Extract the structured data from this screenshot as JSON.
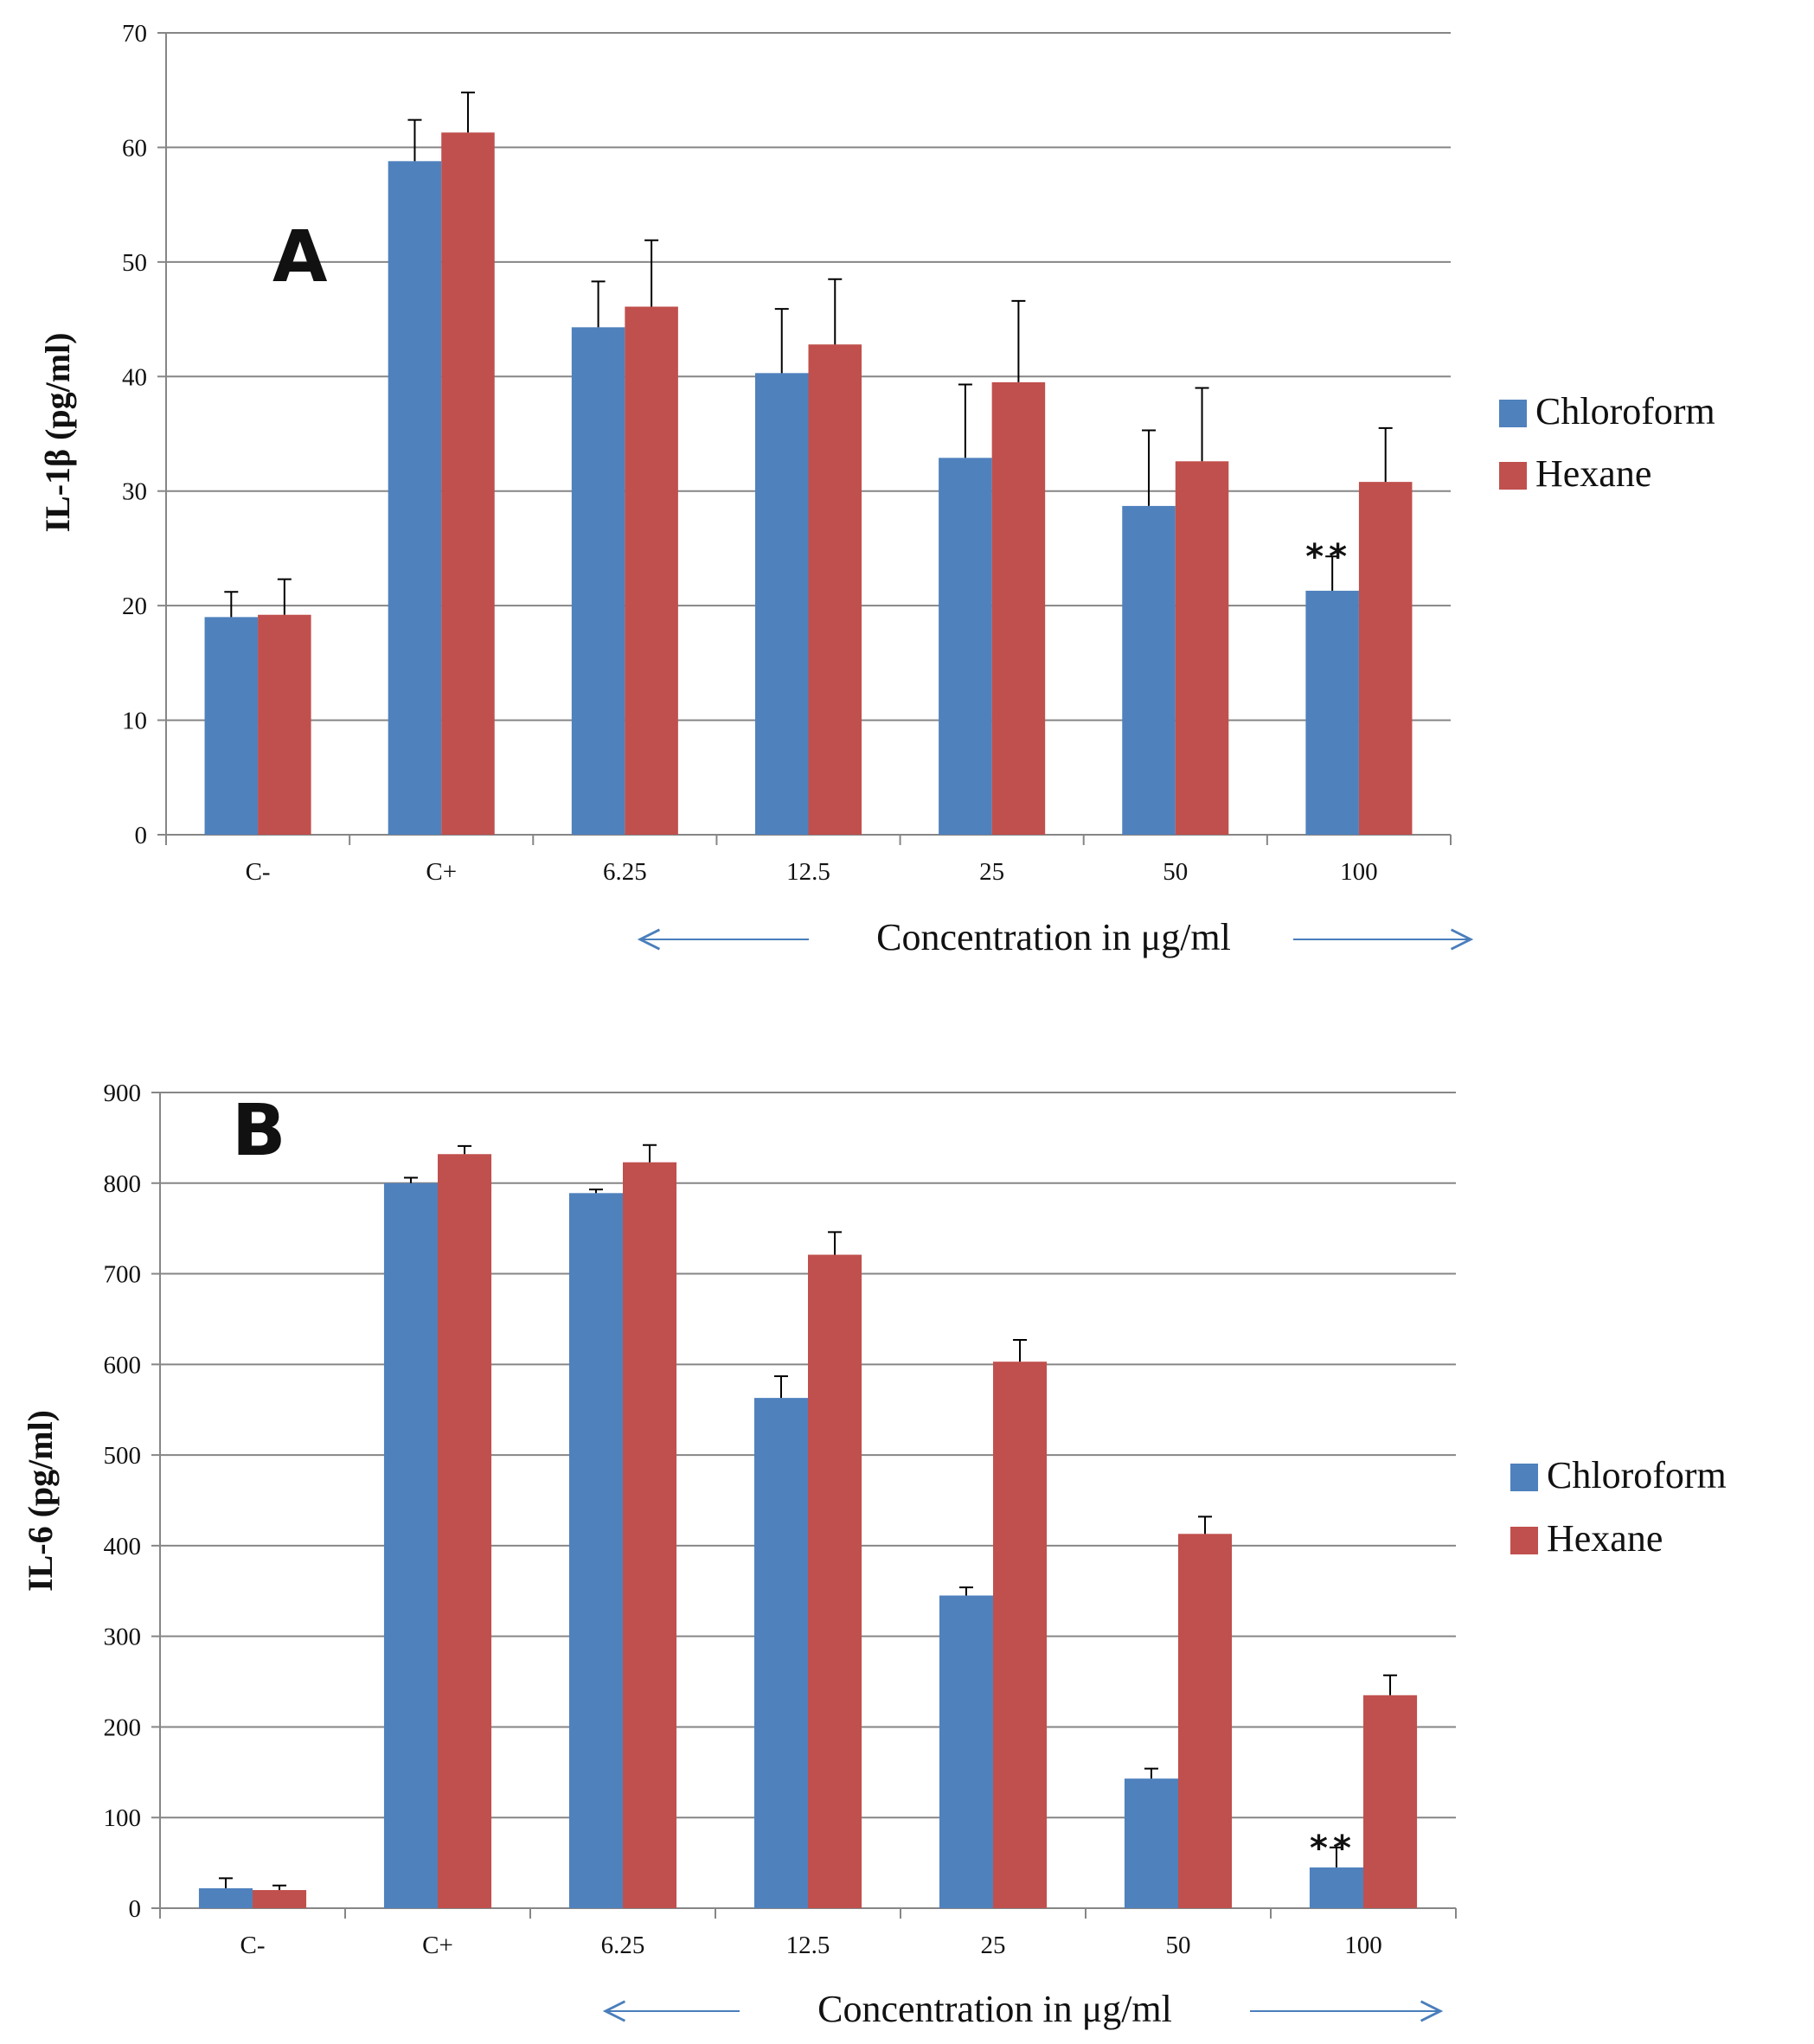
{
  "colors": {
    "chloroform": "#4F81BD",
    "hexane": "#C0504D",
    "grid": "#868686",
    "axis": "#868686",
    "arrow": "#4A7EBB"
  },
  "chart_data": [
    {
      "type": "bar",
      "panel_label": "A",
      "ylabel": "IL-1β (pg/ml)",
      "xlabel": "Concentration in μg/ml",
      "categories": [
        "C-",
        "C+",
        "6.25",
        "12.5",
        "25",
        "50",
        "100"
      ],
      "ylim": [
        0,
        70
      ],
      "yticks": [
        "0",
        "10",
        "20",
        "30",
        "40",
        "50",
        "60",
        "70"
      ],
      "grid": true,
      "legend_position": "right",
      "series": [
        {
          "name": "Chloroform",
          "values": [
            19,
            58.8,
            44.3,
            40.3,
            32.9,
            28.7,
            21.3
          ],
          "errors": [
            2.2,
            3.6,
            4,
            5.6,
            6.4,
            6.6,
            3
          ]
        },
        {
          "name": "Hexane",
          "values": [
            19.2,
            61.3,
            46.1,
            42.8,
            39.5,
            32.6,
            30.8
          ],
          "errors": [
            3.1,
            3.5,
            5.8,
            5.7,
            7.1,
            6.4,
            4.7
          ]
        }
      ],
      "annotations": [
        {
          "text": "**",
          "category": "100",
          "series": "Chloroform"
        }
      ]
    },
    {
      "type": "bar",
      "panel_label": "B",
      "ylabel": "IL-6 (pg/ml)",
      "xlabel": "Concentration in μg/ml",
      "categories": [
        "C-",
        "C+",
        "6.25",
        "12.5",
        "25",
        "50",
        "100"
      ],
      "ylim": [
        0,
        900
      ],
      "yticks": [
        "0",
        "100",
        "200",
        "300",
        "400",
        "500",
        "600",
        "700",
        "800",
        "900"
      ],
      "grid": true,
      "legend_position": "right",
      "series": [
        {
          "name": "Chloroform",
          "values": [
            22,
            800,
            789,
            563,
            345,
            143,
            45
          ],
          "errors": [
            11,
            6,
            4,
            24,
            9,
            11,
            22
          ]
        },
        {
          "name": "Hexane",
          "values": [
            20,
            832,
            823,
            721,
            603,
            413,
            235
          ],
          "errors": [
            5,
            9,
            19,
            25,
            24,
            19,
            22
          ]
        }
      ],
      "annotations": [
        {
          "text": "**",
          "category": "100",
          "series": "Chloroform"
        }
      ]
    }
  ]
}
